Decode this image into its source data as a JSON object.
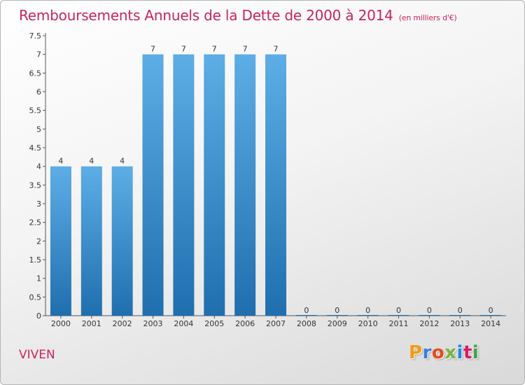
{
  "header": {
    "title": "Remboursements Annuels de la Dette de 2000 à 2014",
    "unit": "(en milliers d'€)"
  },
  "footer": {
    "commune": "VIVEN",
    "logo_letters": [
      "P",
      "r",
      "o",
      "x",
      "i",
      "t",
      "i"
    ],
    "logo_colors": [
      "#f39c12",
      "#3a7fd5",
      "#e64a19",
      "#7cb342",
      "#1e88e5",
      "#d81b60",
      "#43a047"
    ]
  },
  "colors": {
    "bar_top": "#5dade6",
    "bar_bottom": "#1f6faf",
    "title": "#c8245e",
    "axis": "#555555"
  },
  "chart_data": {
    "type": "bar",
    "title": "Remboursements Annuels de la Dette de 2000 à 2014",
    "subtitle": "(en milliers d'€)",
    "xlabel": "",
    "ylabel": "",
    "categories": [
      "2000",
      "2001",
      "2002",
      "2003",
      "2004",
      "2005",
      "2006",
      "2007",
      "2008",
      "2009",
      "2010",
      "2011",
      "2012",
      "2013",
      "2014"
    ],
    "values": [
      4,
      4,
      4,
      7,
      7,
      7,
      7,
      7,
      0,
      0,
      0,
      0,
      0,
      0,
      0
    ],
    "data_labels": [
      "4",
      "4",
      "4",
      "7",
      "7",
      "7",
      "7",
      "7",
      "0",
      "0",
      "0",
      "0",
      "0",
      "0",
      "0"
    ],
    "ylim": [
      0,
      7.5
    ],
    "yticks": [
      0,
      0.5,
      1,
      1.5,
      2,
      2.5,
      3,
      3.5,
      4,
      4.5,
      5,
      5.5,
      6,
      6.5,
      7,
      7.5
    ],
    "ytick_labels": [
      "0",
      "0.5",
      "1",
      "1.5",
      "2",
      "2.5",
      "3",
      "3.5",
      "4",
      "4.5",
      "5",
      "5.5",
      "6",
      "6.5",
      "7",
      "7.5"
    ],
    "grid": false,
    "legend": "none"
  }
}
